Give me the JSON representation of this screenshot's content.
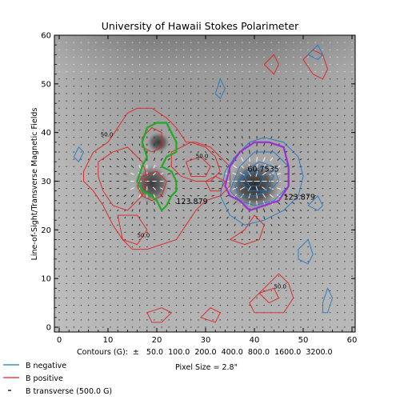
{
  "chart_data": {
    "type": "contour",
    "title": "University of Hawaii Stokes Polarimeter",
    "ylabel": "Line-of-Sight/Transverse Magnetic Fields",
    "xlabel": "",
    "xlim": [
      0,
      60
    ],
    "ylim": [
      0,
      60
    ],
    "x_ticks": [
      0,
      10,
      20,
      30,
      40,
      50,
      60
    ],
    "y_ticks": [
      0,
      10,
      20,
      30,
      40,
      50,
      60
    ],
    "contour_caption": "Contours (G):  ±   50.0  100.0  200.0  400.0  800.0  1600.0  3200.0",
    "pixel_size": "Pixel Size = 2.8\"",
    "legend": [
      {
        "label": "B negative",
        "color": "#1f78c8",
        "mark": "line"
      },
      {
        "label": "B positive",
        "color": "#e02020",
        "mark": "line"
      },
      {
        "label": "B transverse (500.0 G)",
        "color": "#000000",
        "mark": "dash"
      }
    ],
    "annotations": [
      {
        "text": "60.7535",
        "x": 38.6,
        "y": 32.0,
        "color": "#ffffff"
      },
      {
        "text": "123.879",
        "x": 24.0,
        "y": 25.3,
        "color": "#22aa22"
      },
      {
        "text": "123.879",
        "x": 46.0,
        "y": 26.2,
        "color": "#9b30d0"
      },
      {
        "text": "50.0",
        "x": 8.5,
        "y": 39.2,
        "color": "#e02020"
      },
      {
        "text": "50.0",
        "x": 16.0,
        "y": 18.5,
        "color": "#e02020"
      },
      {
        "text": "50.0",
        "x": 28.0,
        "y": 34.8,
        "color": "#e02020"
      },
      {
        "text": "50.0",
        "x": 44.0,
        "y": 8.0,
        "color": "#e02020"
      }
    ],
    "contours": [
      {
        "sign": "positive",
        "points": [
          [
            5,
            32
          ],
          [
            7,
            36
          ],
          [
            10,
            38
          ],
          [
            12,
            41
          ],
          [
            14,
            44
          ],
          [
            16,
            45
          ],
          [
            19,
            45
          ],
          [
            22,
            43
          ],
          [
            24,
            41
          ],
          [
            26,
            38
          ],
          [
            28,
            38
          ],
          [
            31,
            37
          ],
          [
            33,
            35
          ],
          [
            35,
            33
          ],
          [
            35,
            29
          ],
          [
            33,
            27
          ],
          [
            30,
            26
          ],
          [
            28,
            24
          ],
          [
            26,
            21
          ],
          [
            24,
            18
          ],
          [
            21,
            17
          ],
          [
            18,
            16
          ],
          [
            15,
            16
          ],
          [
            13,
            18
          ],
          [
            11,
            21
          ],
          [
            9,
            25
          ],
          [
            7,
            28
          ],
          [
            5,
            30
          ]
        ]
      },
      {
        "sign": "positive",
        "points": [
          [
            8,
            34
          ],
          [
            11,
            36
          ],
          [
            14,
            37
          ],
          [
            17,
            34
          ],
          [
            18,
            31
          ],
          [
            17,
            27
          ],
          [
            14,
            24
          ],
          [
            11,
            25
          ],
          [
            9,
            28
          ],
          [
            8,
            31
          ]
        ]
      },
      {
        "sign": "positive",
        "points": [
          [
            17,
            31
          ],
          [
            20,
            32
          ],
          [
            22,
            30
          ],
          [
            21,
            27
          ],
          [
            19,
            26
          ],
          [
            17,
            27
          ],
          [
            16,
            29
          ]
        ]
      },
      {
        "sign": "positive",
        "points": [
          [
            17,
            39
          ],
          [
            19,
            41
          ],
          [
            21,
            40
          ],
          [
            21,
            37
          ],
          [
            19,
            36
          ],
          [
            17,
            37
          ]
        ]
      },
      {
        "sign": "positive",
        "points": [
          [
            23,
            36
          ],
          [
            27,
            38
          ],
          [
            30,
            37
          ],
          [
            32,
            35
          ],
          [
            33,
            32
          ],
          [
            31,
            30
          ],
          [
            28,
            30
          ],
          [
            25,
            31
          ],
          [
            23,
            33
          ]
        ]
      },
      {
        "sign": "positive",
        "points": [
          [
            26,
            34
          ],
          [
            29,
            35
          ],
          [
            31,
            33
          ],
          [
            30,
            31
          ],
          [
            27,
            31
          ]
        ]
      },
      {
        "sign": "positive",
        "points": [
          [
            12,
            23
          ],
          [
            16,
            23
          ],
          [
            18,
            20
          ],
          [
            16,
            17
          ],
          [
            13,
            18
          ]
        ]
      },
      {
        "sign": "positive",
        "points": [
          [
            35,
            18
          ],
          [
            38,
            20
          ],
          [
            40,
            23
          ],
          [
            42,
            21
          ],
          [
            41,
            18
          ],
          [
            38,
            17
          ]
        ]
      },
      {
        "sign": "positive",
        "points": [
          [
            39,
            5
          ],
          [
            41,
            7
          ],
          [
            43,
            9
          ],
          [
            45,
            11
          ],
          [
            47,
            9
          ],
          [
            48,
            6
          ],
          [
            46,
            3
          ],
          [
            43,
            3
          ],
          [
            40,
            3
          ]
        ]
      },
      {
        "sign": "positive",
        "points": [
          [
            41,
            7
          ],
          [
            44,
            8
          ],
          [
            45,
            6
          ],
          [
            43,
            5
          ]
        ]
      },
      {
        "sign": "positive",
        "points": [
          [
            50,
            55
          ],
          [
            52,
            57
          ],
          [
            54,
            56
          ],
          [
            55,
            53
          ],
          [
            54,
            51
          ],
          [
            52,
            52
          ]
        ]
      },
      {
        "sign": "positive",
        "points": [
          [
            42,
            54
          ],
          [
            44,
            56
          ],
          [
            45,
            54
          ],
          [
            44,
            52
          ]
        ]
      },
      {
        "sign": "positive",
        "points": [
          [
            18,
            3
          ],
          [
            21,
            4
          ],
          [
            23,
            3
          ],
          [
            21,
            1
          ],
          [
            19,
            1
          ]
        ]
      },
      {
        "sign": "positive",
        "points": [
          [
            29,
            2
          ],
          [
            31,
            4
          ],
          [
            33,
            3
          ],
          [
            32,
            1
          ]
        ]
      },
      {
        "sign": "positive",
        "points": [
          [
            30,
            30
          ],
          [
            32,
            31
          ],
          [
            34,
            30
          ],
          [
            33,
            28
          ],
          [
            31,
            28
          ]
        ]
      },
      {
        "sign": "negative",
        "points": [
          [
            33,
            27
          ],
          [
            34,
            32
          ],
          [
            36,
            35
          ],
          [
            39,
            38
          ],
          [
            42,
            39
          ],
          [
            46,
            38
          ],
          [
            49,
            35
          ],
          [
            50,
            31
          ],
          [
            49,
            27
          ],
          [
            46,
            24
          ],
          [
            42,
            22
          ],
          [
            38,
            21
          ],
          [
            35,
            23
          ]
        ]
      },
      {
        "sign": "negative",
        "points": [
          [
            35,
            28
          ],
          [
            37,
            33
          ],
          [
            40,
            36
          ],
          [
            44,
            36
          ],
          [
            47,
            33
          ],
          [
            47,
            29
          ],
          [
            44,
            26
          ],
          [
            40,
            25
          ],
          [
            37,
            26
          ]
        ]
      },
      {
        "sign": "negative",
        "points": [
          [
            36,
            29
          ],
          [
            38,
            32
          ],
          [
            41,
            34
          ],
          [
            44,
            33
          ],
          [
            45,
            30
          ],
          [
            43,
            28
          ],
          [
            40,
            27
          ],
          [
            37,
            27
          ]
        ]
      },
      {
        "sign": "negative",
        "points": [
          [
            37,
            30
          ],
          [
            39,
            32
          ],
          [
            42,
            33
          ],
          [
            44,
            31
          ],
          [
            42,
            28
          ],
          [
            39,
            28
          ]
        ]
      },
      {
        "sign": "negative",
        "points": [
          [
            38,
            31
          ],
          [
            40,
            32
          ],
          [
            42,
            31
          ],
          [
            41,
            29
          ],
          [
            39,
            29
          ]
        ]
      },
      {
        "sign": "negative",
        "points": [
          [
            51,
            25
          ],
          [
            53,
            27
          ],
          [
            54,
            25
          ],
          [
            53,
            24
          ]
        ]
      },
      {
        "sign": "negative",
        "points": [
          [
            32,
            48
          ],
          [
            33,
            51
          ],
          [
            34,
            49
          ],
          [
            33,
            47
          ]
        ]
      },
      {
        "sign": "negative",
        "points": [
          [
            49,
            16
          ],
          [
            51,
            18
          ],
          [
            52,
            15
          ],
          [
            51,
            13
          ],
          [
            49,
            14
          ]
        ]
      },
      {
        "sign": "negative",
        "points": [
          [
            54,
            5
          ],
          [
            55,
            8
          ],
          [
            56,
            6
          ],
          [
            55,
            3
          ],
          [
            54,
            3
          ]
        ]
      },
      {
        "sign": "negative",
        "points": [
          [
            3,
            35
          ],
          [
            4,
            37
          ],
          [
            5,
            36
          ],
          [
            4,
            34
          ]
        ]
      },
      {
        "sign": "negative",
        "points": [
          [
            51,
            56
          ],
          [
            53,
            58
          ],
          [
            54,
            56
          ],
          [
            53,
            55
          ]
        ]
      }
    ],
    "highlights": [
      {
        "color": "#22aa22",
        "points": [
          [
            16,
            30
          ],
          [
            17,
            33
          ],
          [
            18,
            35
          ],
          [
            17,
            38
          ],
          [
            18,
            41
          ],
          [
            20,
            42
          ],
          [
            22,
            42
          ],
          [
            23,
            40
          ],
          [
            24,
            38
          ],
          [
            24,
            36
          ],
          [
            22,
            35
          ],
          [
            21,
            33
          ],
          [
            23,
            32
          ],
          [
            24,
            30
          ],
          [
            24,
            28
          ],
          [
            23,
            27
          ],
          [
            22,
            25
          ],
          [
            21,
            24
          ],
          [
            20,
            26
          ],
          [
            19,
            27
          ],
          [
            17,
            28
          ]
        ]
      },
      {
        "color": "#9b30d0",
        "points": [
          [
            34,
            29
          ],
          [
            35,
            33
          ],
          [
            37,
            36
          ],
          [
            40,
            38
          ],
          [
            43,
            38
          ],
          [
            46,
            37
          ],
          [
            47,
            33
          ],
          [
            47,
            29
          ],
          [
            45,
            26
          ],
          [
            42,
            25
          ],
          [
            39,
            24
          ],
          [
            37,
            26
          ],
          [
            35,
            27
          ]
        ]
      }
    ]
  }
}
